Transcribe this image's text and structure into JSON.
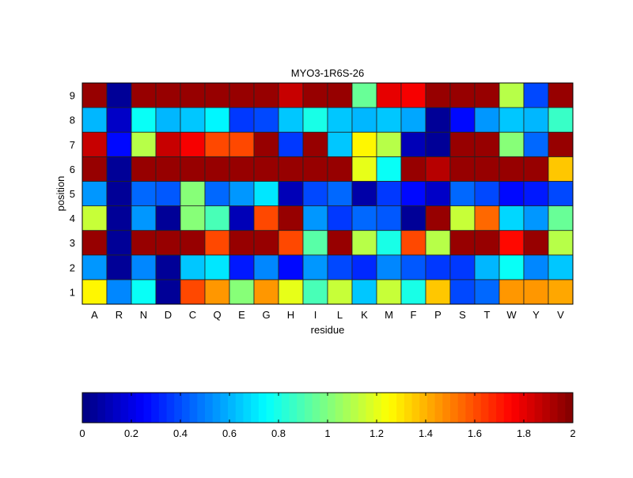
{
  "chart_data": {
    "type": "heatmap",
    "title": "MYO3-1R6S-26",
    "xlabel": "residue",
    "ylabel": "position",
    "x_categories": [
      "A",
      "R",
      "N",
      "D",
      "C",
      "Q",
      "E",
      "G",
      "H",
      "I",
      "L",
      "K",
      "M",
      "F",
      "P",
      "S",
      "T",
      "W",
      "Y",
      "V"
    ],
    "y_categories": [
      "1",
      "2",
      "3",
      "4",
      "5",
      "6",
      "7",
      "8",
      "9"
    ],
    "colormap": "jet",
    "clim": [
      0,
      2
    ],
    "colorbar": {
      "location": "bottom",
      "ticks": [
        "0",
        "0.2",
        "0.4",
        "0.6",
        "0.8",
        "1",
        "1.2",
        "1.4",
        "1.6",
        "1.8",
        "2"
      ]
    },
    "values_by_position": {
      "1": [
        1.25,
        0.5,
        0.75,
        0.05,
        1.6,
        1.45,
        1.0,
        1.45,
        1.2,
        0.9,
        1.15,
        0.65,
        1.15,
        0.8,
        1.35,
        0.4,
        0.45,
        1.45,
        1.45,
        1.42
      ],
      "2": [
        0.55,
        0.05,
        0.52,
        0.05,
        0.65,
        0.7,
        0.3,
        0.52,
        0.28,
        0.55,
        0.38,
        0.32,
        0.5,
        0.42,
        0.35,
        0.35,
        0.6,
        0.75,
        0.5,
        0.65
      ],
      "3": [
        1.95,
        0.05,
        1.95,
        1.95,
        1.95,
        1.62,
        1.95,
        1.95,
        1.6,
        0.92,
        1.95,
        1.1,
        0.8,
        1.62,
        1.1,
        1.95,
        1.95,
        1.72,
        1.95,
        1.12
      ],
      "4": [
        1.15,
        0.05,
        0.55,
        0.05,
        1.0,
        0.9,
        0.12,
        1.6,
        1.95,
        0.55,
        0.35,
        0.45,
        0.42,
        0.05,
        1.95,
        1.15,
        1.55,
        0.68,
        0.55,
        0.95
      ],
      "5": [
        0.55,
        0.05,
        0.45,
        0.42,
        1.0,
        0.45,
        0.55,
        0.7,
        0.1,
        0.4,
        0.45,
        0.08,
        0.35,
        0.25,
        0.15,
        0.45,
        0.4,
        0.25,
        0.3,
        0.4
      ],
      "6": [
        1.95,
        0.05,
        1.95,
        1.95,
        1.95,
        1.95,
        1.95,
        1.95,
        1.95,
        1.95,
        1.95,
        1.2,
        0.75,
        1.95,
        1.9,
        1.95,
        1.95,
        1.95,
        1.95,
        1.35
      ],
      "7": [
        1.85,
        0.25,
        1.1,
        1.85,
        1.75,
        1.6,
        1.62,
        1.95,
        0.35,
        1.95,
        0.65,
        1.25,
        1.1,
        0.12,
        0.05,
        1.95,
        1.95,
        1.0,
        0.45,
        1.95
      ],
      "8": [
        0.6,
        0.15,
        0.75,
        0.62,
        0.65,
        0.72,
        0.35,
        0.38,
        0.65,
        0.8,
        0.65,
        0.6,
        0.65,
        0.58,
        0.05,
        0.28,
        0.55,
        0.63,
        0.6,
        0.85
      ],
      "9": [
        1.95,
        0.05,
        1.95,
        1.95,
        1.95,
        1.95,
        1.95,
        1.95,
        1.85,
        1.95,
        1.95,
        0.95,
        1.8,
        1.75,
        1.95,
        1.95,
        1.95,
        1.1,
        0.4,
        1.95
      ]
    }
  }
}
